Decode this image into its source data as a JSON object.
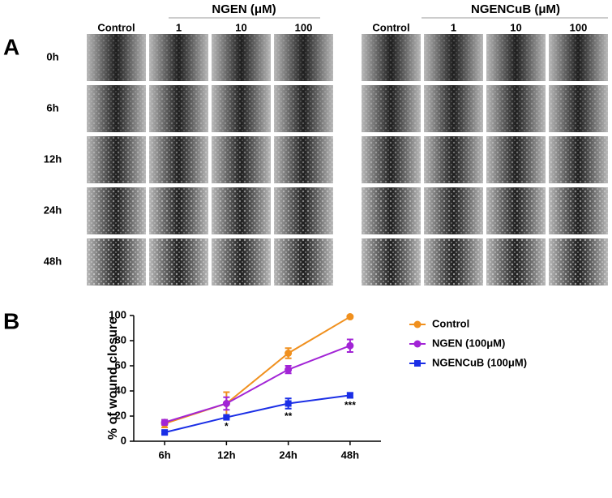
{
  "panel_a": {
    "label": "A",
    "groups": [
      {
        "title": "NGEN (μM)",
        "columns": [
          "Control",
          "1",
          "10",
          "100"
        ]
      },
      {
        "title": "NGENCuB (μM)",
        "columns": [
          "Control",
          "1",
          "10",
          "100"
        ]
      }
    ],
    "rows": [
      "0h",
      "6h",
      "12h",
      "24h",
      "48h"
    ]
  },
  "panel_b": {
    "label": "B"
  },
  "chart_data": {
    "type": "line",
    "ylabel": "% of wound closure",
    "categories": [
      "6h",
      "12h",
      "24h",
      "48h"
    ],
    "ylim": [
      0,
      100
    ],
    "yticks": [
      0,
      20,
      40,
      60,
      80,
      100
    ],
    "series": [
      {
        "name": "Control",
        "color": "#f0901e",
        "marker": "circle",
        "values": [
          14,
          30,
          70,
          99
        ],
        "errors": [
          3,
          9,
          4,
          1
        ]
      },
      {
        "name": "NGEN (100μM)",
        "color": "#a224d6",
        "marker": "circle",
        "values": [
          15,
          30,
          57,
          76
        ],
        "errors": [
          2,
          5,
          3,
          5
        ]
      },
      {
        "name": "NGENCuB (100μM)",
        "color": "#1a2ee6",
        "marker": "square",
        "values": [
          7,
          19,
          30,
          36.5
        ],
        "errors": [
          1,
          1,
          4,
          2
        ],
        "significance": [
          null,
          "*",
          "**",
          "***"
        ]
      }
    ]
  }
}
